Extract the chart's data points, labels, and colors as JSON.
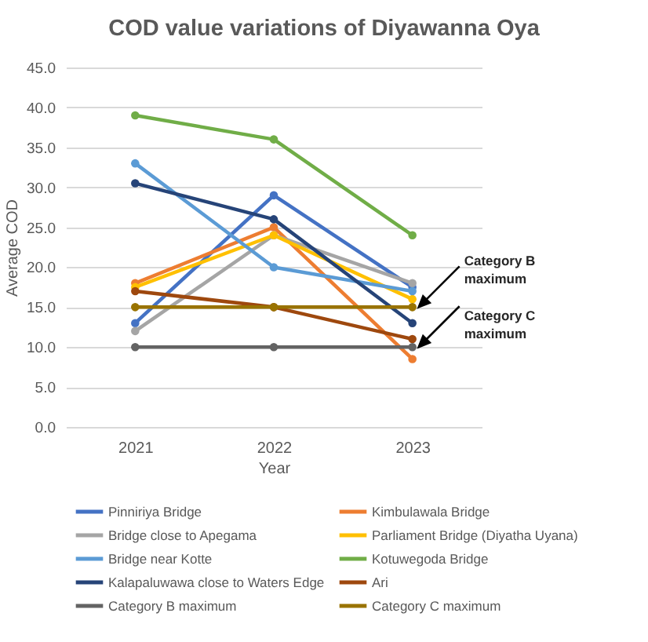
{
  "chart_data": {
    "type": "line",
    "title": "COD value variations of Diyawanna Oya",
    "xlabel": "Year",
    "ylabel": "Average COD",
    "categories": [
      "2021",
      "2022",
      "2023"
    ],
    "ylim": [
      0,
      45
    ],
    "yticks": [
      {
        "value": 0,
        "label": "0.0"
      },
      {
        "value": 5,
        "label": "5.0"
      },
      {
        "value": 10,
        "label": "10.0"
      },
      {
        "value": 15,
        "label": "15.0"
      },
      {
        "value": 20,
        "label": "20.0"
      },
      {
        "value": 25,
        "label": "25.0"
      },
      {
        "value": 30,
        "label": "30.0"
      },
      {
        "value": 35,
        "label": "35.0"
      },
      {
        "value": 40,
        "label": "40.0"
      },
      {
        "value": 45,
        "label": "45.0"
      }
    ],
    "grid": "y",
    "legend": "bottom",
    "marker": "circle",
    "line_style": "solid",
    "series": [
      {
        "name": "Pinniriya Bridge",
        "color": "#4472c4",
        "values": [
          13,
          29,
          17.5
        ]
      },
      {
        "name": "Kimbulawala Bridge",
        "color": "#ed7d31",
        "values": [
          18,
          25,
          8.5
        ]
      },
      {
        "name": "Bridge close to Apegama",
        "color": "#a5a5a5",
        "values": [
          12,
          24,
          18
        ]
      },
      {
        "name": "Parliament Bridge (Diyatha Uyana)",
        "color": "#ffc000",
        "values": [
          17.5,
          24,
          16
        ]
      },
      {
        "name": "Bridge near Kotte",
        "color": "#5b9bd5",
        "values": [
          33,
          20,
          17
        ]
      },
      {
        "name": "Kotuwegoda Bridge",
        "color": "#70ad47",
        "values": [
          39,
          36,
          24
        ]
      },
      {
        "name": "Kalapaluwawa close to Waters Edge",
        "color": "#264478",
        "values": [
          30.5,
          26,
          13
        ]
      },
      {
        "name": "Ari",
        "color": "#9e480e",
        "values": [
          17,
          15,
          11
        ]
      },
      {
        "name": "Category B maximum",
        "color": "#636363",
        "values": [
          10,
          10,
          10
        ]
      },
      {
        "name": "Category C maximum",
        "color": "#997300",
        "values": [
          15,
          15,
          15
        ]
      }
    ],
    "annotations": [
      {
        "text": "Category B maximum",
        "x": "2023",
        "y": 15
      },
      {
        "text": "Category C maximum",
        "x": "2023",
        "y": 10
      }
    ]
  }
}
